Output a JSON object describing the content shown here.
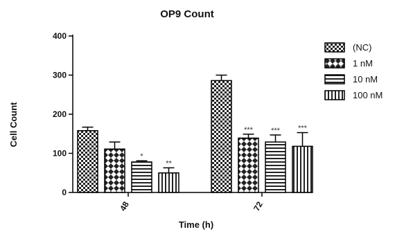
{
  "chart_data": {
    "type": "bar",
    "title": "OP9 Count",
    "xlabel": "Time (h)",
    "ylabel": "Cell Count",
    "ylim": [
      0,
      400
    ],
    "yticks": [
      0,
      100,
      200,
      300,
      400
    ],
    "categories": [
      "48",
      "72"
    ],
    "series": [
      {
        "name": "(NC)",
        "pattern": "checker",
        "values": [
          158,
          286
        ],
        "errors": [
          9,
          14
        ],
        "sig": [
          "",
          ""
        ]
      },
      {
        "name": "1 nM",
        "pattern": "crosshatch",
        "values": [
          111,
          139
        ],
        "errors": [
          18,
          10
        ],
        "sig": [
          "",
          "***"
        ]
      },
      {
        "name": "10 nM",
        "pattern": "horizontal",
        "values": [
          78,
          129
        ],
        "errors": [
          3,
          18
        ],
        "sig": [
          "*",
          "***"
        ]
      },
      {
        "name": "100 nM",
        "pattern": "vertical",
        "values": [
          50,
          118
        ],
        "errors": [
          13,
          35
        ],
        "sig": [
          "**",
          "***"
        ]
      }
    ],
    "legend_position": "top-right",
    "grid": false
  }
}
